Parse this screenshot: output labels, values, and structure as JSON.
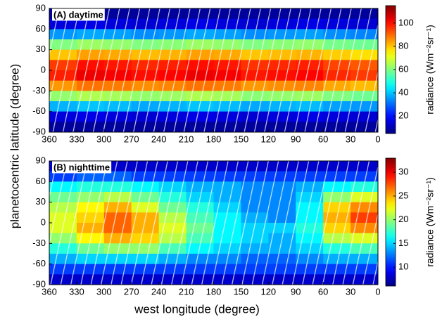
{
  "figure": {
    "xlabel": "west longitude (degree)",
    "ylabel": "planetocentric latitude (degree)"
  },
  "chart_data": [
    {
      "type": "heatmap",
      "label": "(A) daytime",
      "colormap": "jet",
      "xbins": [
        360,
        330,
        300,
        270,
        240,
        210,
        180,
        150,
        120,
        90,
        60,
        30,
        0
      ],
      "ybins": [
        90,
        75,
        60,
        45,
        30,
        15,
        0,
        -15,
        -30,
        -45,
        -60,
        -75,
        -90
      ],
      "values": [
        [
          8,
          8,
          8,
          8,
          8,
          8,
          8,
          8,
          8,
          8,
          8,
          8
        ],
        [
          15,
          16,
          15,
          14,
          15,
          16,
          15,
          14,
          15,
          16,
          15,
          14
        ],
        [
          35,
          37,
          36,
          34,
          35,
          37,
          36,
          34,
          35,
          36,
          34,
          33
        ],
        [
          60,
          63,
          62,
          60,
          61,
          63,
          62,
          60,
          61,
          62,
          59,
          58
        ],
        [
          80,
          84,
          83,
          81,
          82,
          84,
          83,
          80,
          81,
          82,
          79,
          77
        ],
        [
          95,
          100,
          99,
          97,
          98,
          100,
          99,
          96,
          97,
          98,
          94,
          92
        ],
        [
          98,
          103,
          102,
          100,
          101,
          103,
          102,
          99,
          100,
          101,
          97,
          95
        ],
        [
          85,
          89,
          88,
          86,
          87,
          89,
          88,
          85,
          86,
          87,
          83,
          81
        ],
        [
          62,
          65,
          64,
          62,
          63,
          65,
          64,
          61,
          62,
          63,
          60,
          58
        ],
        [
          38,
          40,
          39,
          37,
          38,
          40,
          39,
          37,
          38,
          39,
          36,
          35
        ],
        [
          15,
          16,
          15,
          14,
          15,
          16,
          15,
          14,
          15,
          16,
          15,
          14
        ],
        [
          8,
          8,
          8,
          8,
          8,
          8,
          8,
          8,
          8,
          8,
          8,
          8
        ]
      ],
      "xlim": [
        360,
        0
      ],
      "ylim": [
        -90,
        90
      ],
      "xticks": [
        360,
        330,
        300,
        270,
        240,
        210,
        180,
        150,
        120,
        90,
        60,
        30,
        0
      ],
      "yticks": [
        90,
        60,
        30,
        0,
        -30,
        -60,
        -90
      ],
      "clim": [
        5,
        115
      ],
      "cticks": [
        20,
        40,
        60,
        80,
        100
      ],
      "colorbar_label": "radiance (Wm⁻²sr⁻¹)"
    },
    {
      "type": "heatmap",
      "label": "(B) nighttime",
      "colormap": "jet",
      "xbins": [
        360,
        330,
        300,
        270,
        240,
        210,
        180,
        150,
        120,
        90,
        60,
        30,
        0
      ],
      "ybins": [
        90,
        75,
        60,
        45,
        30,
        15,
        0,
        -15,
        -30,
        -45,
        -60,
        -75,
        -90
      ],
      "values": [
        [
          8,
          8,
          8,
          8,
          8,
          8,
          8,
          8,
          8,
          8,
          8,
          8
        ],
        [
          11,
          12,
          12,
          11,
          11,
          11,
          11,
          11,
          11,
          11,
          11,
          11
        ],
        [
          16,
          17,
          17,
          16,
          15,
          14,
          14,
          13,
          13,
          14,
          16,
          17
        ],
        [
          19,
          20,
          21,
          19,
          17,
          15,
          14,
          13,
          13,
          15,
          20,
          22
        ],
        [
          21,
          23,
          25,
          22,
          19,
          17,
          15,
          13,
          13,
          16,
          24,
          26
        ],
        [
          22,
          24,
          27,
          25,
          21,
          18,
          16,
          14,
          13,
          16,
          25,
          28
        ],
        [
          22,
          25,
          27,
          25,
          22,
          19,
          16,
          15,
          15,
          17,
          24,
          26
        ],
        [
          20,
          23,
          25,
          24,
          21,
          18,
          16,
          15,
          14,
          16,
          21,
          22
        ],
        [
          17,
          19,
          20,
          20,
          18,
          16,
          15,
          14,
          14,
          15,
          17,
          18
        ],
        [
          14,
          15,
          15,
          15,
          14,
          13,
          13,
          12,
          12,
          13,
          14,
          14
        ],
        [
          11,
          11,
          11,
          11,
          11,
          11,
          11,
          11,
          11,
          11,
          11,
          11
        ],
        [
          8,
          8,
          8,
          8,
          8,
          8,
          8,
          8,
          8,
          8,
          8,
          8
        ]
      ],
      "xlim": [
        360,
        0
      ],
      "ylim": [
        -90,
        90
      ],
      "xticks": [
        360,
        330,
        300,
        270,
        240,
        210,
        180,
        150,
        120,
        90,
        60,
        30,
        0
      ],
      "yticks": [
        90,
        60,
        30,
        0,
        -30,
        -60,
        -90
      ],
      "clim": [
        6,
        33
      ],
      "cticks": [
        10,
        15,
        20,
        25,
        30
      ],
      "colorbar_label": "radiance (Wm⁻²sr⁻¹)"
    }
  ]
}
